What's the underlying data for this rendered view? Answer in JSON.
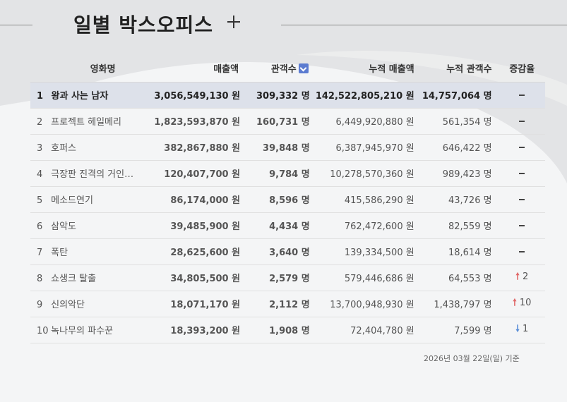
{
  "header": {
    "title": "일별 박스오피스",
    "add_label": "+"
  },
  "columns": [
    "영화명",
    "매출액",
    "관객수",
    "누적 매출액",
    "누적 관객수",
    "증감율"
  ],
  "rows": [
    {
      "rank": "1",
      "title": "왕과 사는 남자",
      "sales": "3,056,549,130 원",
      "audience": "309,332 명",
      "cum_sales": "142,522,805,210 원",
      "cum_audience": "14,757,064 명",
      "change": "",
      "trend": "same"
    },
    {
      "rank": "2",
      "title": "프로젝트 헤일메리",
      "sales": "1,823,593,870 원",
      "audience": "160,731 명",
      "cum_sales": "6,449,920,880 원",
      "cum_audience": "561,354 명",
      "change": "",
      "trend": "same"
    },
    {
      "rank": "3",
      "title": "호퍼스",
      "sales": "382,867,880 원",
      "audience": "39,848 명",
      "cum_sales": "6,387,945,970 원",
      "cum_audience": "646,422 명",
      "change": "",
      "trend": "same"
    },
    {
      "rank": "4",
      "title": "극장판 진격의 거인…",
      "sales": "120,407,700 원",
      "audience": "9,784 명",
      "cum_sales": "10,278,570,360 원",
      "cum_audience": "989,423 명",
      "change": "",
      "trend": "same"
    },
    {
      "rank": "5",
      "title": "메소드연기",
      "sales": "86,174,000 원",
      "audience": "8,596 명",
      "cum_sales": "415,586,290 원",
      "cum_audience": "43,726 명",
      "change": "",
      "trend": "same"
    },
    {
      "rank": "6",
      "title": "삼악도",
      "sales": "39,485,900 원",
      "audience": "4,434 명",
      "cum_sales": "762,472,600 원",
      "cum_audience": "82,559 명",
      "change": "",
      "trend": "same"
    },
    {
      "rank": "7",
      "title": "폭탄",
      "sales": "28,625,600 원",
      "audience": "3,640 명",
      "cum_sales": "139,334,500 원",
      "cum_audience": "18,614 명",
      "change": "",
      "trend": "same"
    },
    {
      "rank": "8",
      "title": "쇼생크 탈출",
      "sales": "34,805,500 원",
      "audience": "2,579 명",
      "cum_sales": "579,446,686 원",
      "cum_audience": "64,553 명",
      "change": "2",
      "trend": "up"
    },
    {
      "rank": "9",
      "title": "신의악단",
      "sales": "18,071,170 원",
      "audience": "2,112 명",
      "cum_sales": "13,700,948,930 원",
      "cum_audience": "1,438,797 명",
      "change": "10",
      "trend": "up"
    },
    {
      "rank": "10",
      "title": "녹나무의 파수꾼",
      "sales": "18,393,200 원",
      "audience": "1,908 명",
      "cum_sales": "72,404,780 원",
      "cum_audience": "7,599 명",
      "change": "1",
      "trend": "down"
    }
  ],
  "footer": {
    "date_note": "2026년 03월 22일(일) 기준"
  },
  "colors": {
    "highlight_row": "#dde1ea",
    "sort_icon": "#5b7bd0",
    "up": "#e06767",
    "down": "#5b8fd8"
  }
}
